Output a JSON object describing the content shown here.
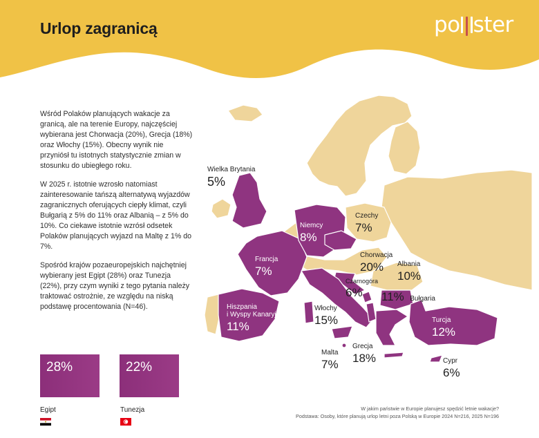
{
  "title": "Urlop zagranicą",
  "logo": {
    "left": "po",
    "right": "ster"
  },
  "colors": {
    "highlight": "#8f3480",
    "land": "#efd59b",
    "header": "#f0c246",
    "logo_accent": "#c7504d"
  },
  "paragraphs": [
    "Wśród Polaków planujących wakacje za granicą, ale na terenie Europy, najczęściej wybierana jest Chorwacja (20%), Grecja (18%) oraz Włochy (15%). Obecny wynik nie przyniósł tu istotnych statystycznie zmian w stosunku do ubiegłego roku.",
    "W 2025 r. istotnie wzrosło natomiast zainteresowanie tańszą alternatywą wyjazdów zagranicznych oferujących ciepły klimat, czyli Bułgarią z 5% do 11% oraz Albanią – z 5% do 10%. Co ciekawe istotnie wzrósł odsetek Polaków planujących wyjazd na Maltę z 1% do 7%.",
    "Spośród krajów pozaeuropejskich najchętniej wybierany jest Egipt (28%) oraz Tunezja (22%), przy czym wyniki z tego pytania należy traktować ostrożnie, ze względu na niską podstawę procentowania (N=46)."
  ],
  "countries": {
    "uk": {
      "name": "Wielka Brytania",
      "value": "5%"
    },
    "de": {
      "name": "Niemcy",
      "value": "8%"
    },
    "cz": {
      "name": "Czechy",
      "value": "7%"
    },
    "fr": {
      "name": "Francja",
      "value": "7%"
    },
    "hr": {
      "name": "Chorwacja",
      "value": "20%"
    },
    "al": {
      "name": "Albania",
      "value": "10%"
    },
    "me": {
      "name": "Czarnogóra",
      "value": "6%"
    },
    "bg": {
      "name": "Bułgaria",
      "value": "11%"
    },
    "es": {
      "name_line1": "Hiszpania",
      "name_line2": "i Wyspy Kanaryjskie",
      "value": "11%"
    },
    "it": {
      "name": "Włochy",
      "value": "15%"
    },
    "tr": {
      "name": "Turcja",
      "value": "12%"
    },
    "mt": {
      "name": "Malta",
      "value": "7%"
    },
    "gr": {
      "name": "Grecja",
      "value": "18%"
    },
    "cy": {
      "name": "Cypr",
      "value": "6%"
    }
  },
  "non_europe": [
    {
      "name": "Egipt",
      "value": "28%"
    },
    {
      "name": "Tunezja",
      "value": "22%"
    }
  ],
  "footnote": {
    "question": "W jakim państwie w Europie planujesz spędzić letnie wakacje?",
    "base": "Podstawa: Osoby, które planują urlop letni poza Polską w Europie 2024 N=216, 2025 N=196"
  }
}
